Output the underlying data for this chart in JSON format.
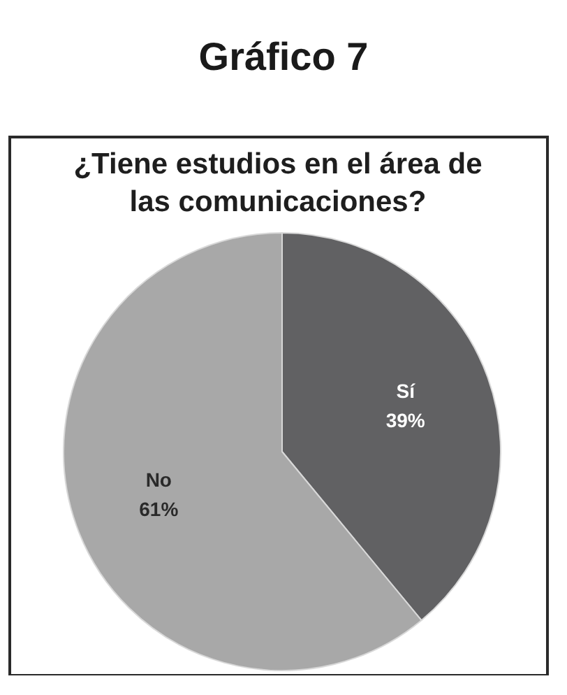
{
  "chart_data": {
    "type": "pie",
    "title": "Gráfico 7",
    "subtitle": "¿Tiene estudios en el área de las comunicaciones?",
    "categories": [
      "Sí",
      "No"
    ],
    "values": [
      39,
      61
    ],
    "colors": [
      "#616163",
      "#a8a8a8"
    ],
    "value_labels": [
      "39%",
      "61%"
    ]
  }
}
